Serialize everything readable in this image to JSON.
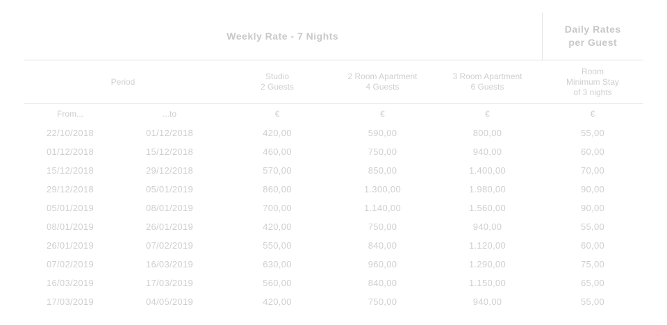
{
  "header": {
    "weekly_title": "Weekly Rate - 7 Nights",
    "daily_title_line1": "Daily Rates",
    "daily_title_line2": "per Guest"
  },
  "columns": {
    "period": "Period",
    "studio_line1": "Studio",
    "studio_line2": "2 Guests",
    "two_room_line1": "2 Room Apartment",
    "two_room_line2": "4 Guests",
    "three_room_line1": "3 Room Apartment",
    "three_room_line2": "6 Guests",
    "daily_line1": "Room",
    "daily_line2": "Minimum Stay",
    "daily_line3": "of 3 nights"
  },
  "subheader": {
    "from": "From...",
    "to": "...to",
    "currency_studio": "€",
    "currency_two_room": "€",
    "currency_three_room": "€",
    "currency_daily": "€"
  },
  "rows": [
    {
      "from": "22/10/2018",
      "to": "01/12/2018",
      "studio": "420,00",
      "two_room": "590,00",
      "three_room": "800,00",
      "daily": "55,00"
    },
    {
      "from": "01/12/2018",
      "to": "15/12/2018",
      "studio": "460,00",
      "two_room": "750,00",
      "three_room": "940,00",
      "daily": "60,00"
    },
    {
      "from": "15/12/2018",
      "to": "29/12/2018",
      "studio": "570,00",
      "two_room": "850,00",
      "three_room": "1.400,00",
      "daily": "70,00"
    },
    {
      "from": "29/12/2018",
      "to": "05/01/2019",
      "studio": "860,00",
      "two_room": "1.300,00",
      "three_room": "1.980,00",
      "daily": "90,00"
    },
    {
      "from": "05/01/2019",
      "to": "08/01/2019",
      "studio": "700,00",
      "two_room": "1.140,00",
      "three_room": "1.560,00",
      "daily": "90,00"
    },
    {
      "from": "08/01/2019",
      "to": "26/01/2019",
      "studio": "420,00",
      "two_room": "750,00",
      "three_room": "940,00",
      "daily": "55,00"
    },
    {
      "from": "26/01/2019",
      "to": "07/02/2019",
      "studio": "550,00",
      "two_room": "840,00",
      "three_room": "1.120,00",
      "daily": "60,00"
    },
    {
      "from": "07/02/2019",
      "to": "16/03/2019",
      "studio": "630,00",
      "two_room": "960,00",
      "three_room": "1.290,00",
      "daily": "75,00"
    },
    {
      "from": "16/03/2019",
      "to": "17/03/2019",
      "studio": "560,00",
      "two_room": "840,00",
      "three_room": "1.150,00",
      "daily": "65,00"
    },
    {
      "from": "17/03/2019",
      "to": "04/05/2019",
      "studio": "420,00",
      "two_room": "750,00",
      "three_room": "940,00",
      "daily": "55,00"
    }
  ]
}
